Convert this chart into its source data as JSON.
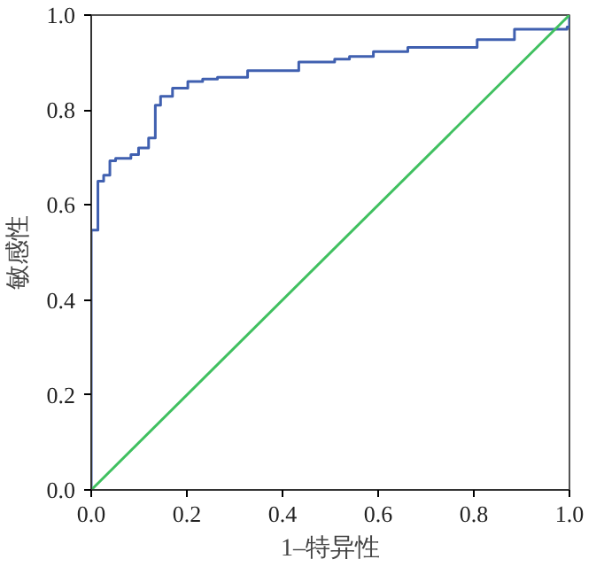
{
  "chart_data": {
    "type": "step",
    "xlabel": "1–特异性",
    "ylabel": "敏感性",
    "xlim": [
      0,
      1
    ],
    "ylim": [
      0,
      1
    ],
    "xticks": [
      {
        "value": 0,
        "label": "0.0"
      },
      {
        "value": 0.2,
        "label": "0.2"
      },
      {
        "value": 0.4,
        "label": "0.4"
      },
      {
        "value": 0.6,
        "label": "0.6"
      },
      {
        "value": 0.8,
        "label": "0.8"
      },
      {
        "value": 1,
        "label": "1.0"
      }
    ],
    "yticks": [
      {
        "value": 0,
        "label": "0.0"
      },
      {
        "value": 0.2,
        "label": "0.2"
      },
      {
        "value": 0.4,
        "label": "0.4"
      },
      {
        "value": 0.6,
        "label": "0.6"
      },
      {
        "value": 0.8,
        "label": "0.8"
      },
      {
        "value": 1,
        "label": "1.0"
      }
    ],
    "grid": false,
    "series": [
      {
        "color": "#4060b0",
        "x": [
          0,
          0,
          0.014,
          0.026,
          0.039,
          0.051,
          0.083,
          0.099,
          0.12,
          0.134,
          0.145,
          0.17,
          0.202,
          0.233,
          0.264,
          0.327,
          0.434,
          0.509,
          0.54,
          0.59,
          0.662,
          0.807,
          0.885,
          0.995,
          1,
          1
        ],
        "values": [
          0,
          0.547,
          0.65,
          0.663,
          0.693,
          0.698,
          0.706,
          0.72,
          0.741,
          0.81,
          0.829,
          0.846,
          0.86,
          0.865,
          0.869,
          0.883,
          0.901,
          0.907,
          0.913,
          0.923,
          0.932,
          0.948,
          0.97,
          0.975,
          0.975,
          1
        ]
      },
      {
        "type": "line",
        "color": "#40c060",
        "x": [
          0,
          1
        ],
        "values": [
          0,
          1
        ]
      }
    ]
  }
}
